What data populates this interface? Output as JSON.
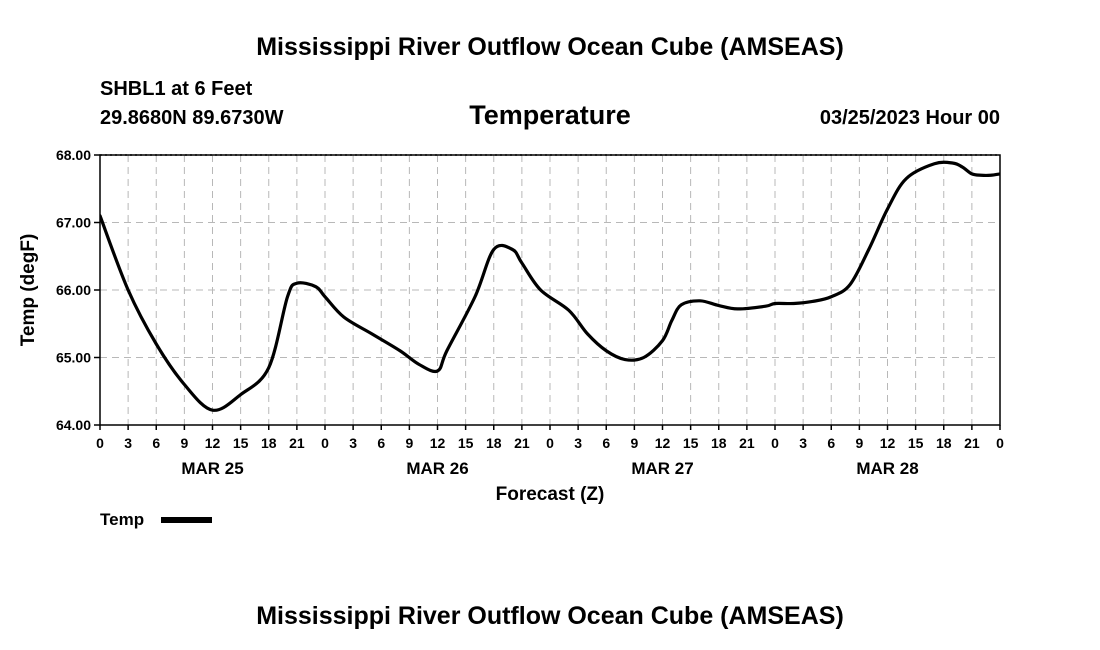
{
  "header": {
    "title": "Mississippi River Outflow Ocean Cube (AMSEAS)",
    "station": "SHBL1 at 6 Feet",
    "location": "29.8680N  89.6730W",
    "datetime": "03/25/2023 Hour 00"
  },
  "footer": {
    "title": "Mississippi River Outflow Ocean Cube (AMSEAS)"
  },
  "chart_data": {
    "type": "line",
    "title": "Temperature",
    "xlabel": "Forecast (Z)",
    "ylabel": "Temp (degF)",
    "ylim": [
      64,
      68
    ],
    "xlim": [
      0,
      96
    ],
    "grid": true,
    "legend_position": "bottom-left",
    "yticks": [
      "64.00",
      "65.00",
      "66.00",
      "67.00",
      "68.00"
    ],
    "xtick_labels": [
      "0",
      "3",
      "6",
      "9",
      "12",
      "15",
      "18",
      "21",
      "0",
      "3",
      "6",
      "9",
      "12",
      "15",
      "18",
      "21",
      "0",
      "3",
      "6",
      "9",
      "12",
      "15",
      "18",
      "21",
      "0",
      "3",
      "6",
      "9",
      "12",
      "15",
      "18",
      "21",
      "0"
    ],
    "day_labels": [
      {
        "label": "MAR 25",
        "hour": 12
      },
      {
        "label": "MAR 26",
        "hour": 36
      },
      {
        "label": "MAR 27",
        "hour": 60
      },
      {
        "label": "MAR 28",
        "hour": 84
      }
    ],
    "series": [
      {
        "name": "Temp",
        "color": "#000000",
        "x": [
          0,
          3,
          6,
          9,
          12,
          15,
          18,
          20,
          21,
          23,
          24,
          26,
          29,
          32,
          34,
          36,
          37,
          40,
          42,
          44,
          45,
          47,
          50,
          52,
          54,
          56,
          58,
          60,
          61,
          62,
          64,
          66,
          68,
          71,
          72,
          74,
          76,
          78,
          80,
          82,
          84,
          86,
          89,
          91,
          92,
          93,
          94,
          95,
          96
        ],
        "y": [
          67.1,
          66.0,
          65.2,
          64.6,
          64.22,
          64.45,
          64.85,
          65.9,
          66.1,
          66.05,
          65.9,
          65.6,
          65.35,
          65.1,
          64.9,
          64.8,
          65.1,
          65.9,
          66.6,
          66.6,
          66.4,
          66.0,
          65.7,
          65.35,
          65.1,
          64.97,
          65.0,
          65.25,
          65.55,
          65.78,
          65.84,
          65.77,
          65.72,
          65.76,
          65.8,
          65.8,
          65.83,
          65.9,
          66.08,
          66.6,
          67.2,
          67.65,
          67.87,
          67.88,
          67.82,
          67.72,
          67.7,
          67.7,
          67.72
        ]
      }
    ]
  }
}
